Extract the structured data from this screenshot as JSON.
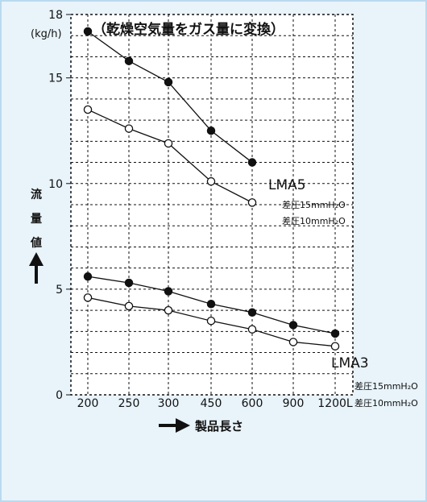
{
  "chart_data": {
    "type": "line",
    "title": "（乾燥空気量をガス量に変換）",
    "y_unit": "(kg/h)",
    "ylabel_chars": [
      "流",
      "量",
      "値"
    ],
    "xlabel": "製品長さ",
    "categories": [
      "200",
      "250",
      "300",
      "450",
      "600",
      "900",
      "1200L"
    ],
    "ylim": [
      0,
      18
    ],
    "yticks": [
      0,
      5,
      10,
      15,
      18
    ],
    "grid": true,
    "series": [
      {
        "group": "LMA5",
        "name": "差圧15mmH₂O",
        "marker": "filled",
        "values": [
          17.2,
          15.8,
          14.8,
          12.5,
          11.0,
          null,
          null
        ]
      },
      {
        "group": "LMA5",
        "name": "差圧10mmH₂O",
        "marker": "open",
        "values": [
          13.5,
          12.6,
          11.9,
          10.1,
          9.1,
          null,
          null
        ]
      },
      {
        "group": "LMA3",
        "name": "差圧15mmH₂O",
        "marker": "filled",
        "values": [
          5.6,
          5.3,
          4.9,
          4.3,
          3.9,
          3.3,
          2.9
        ]
      },
      {
        "group": "LMA3",
        "name": "差圧10mmH₂O",
        "marker": "open",
        "values": [
          4.6,
          4.2,
          4.0,
          3.5,
          3.1,
          2.5,
          2.3
        ]
      }
    ],
    "group_labels": [
      "LMA5",
      "LMA3"
    ]
  }
}
